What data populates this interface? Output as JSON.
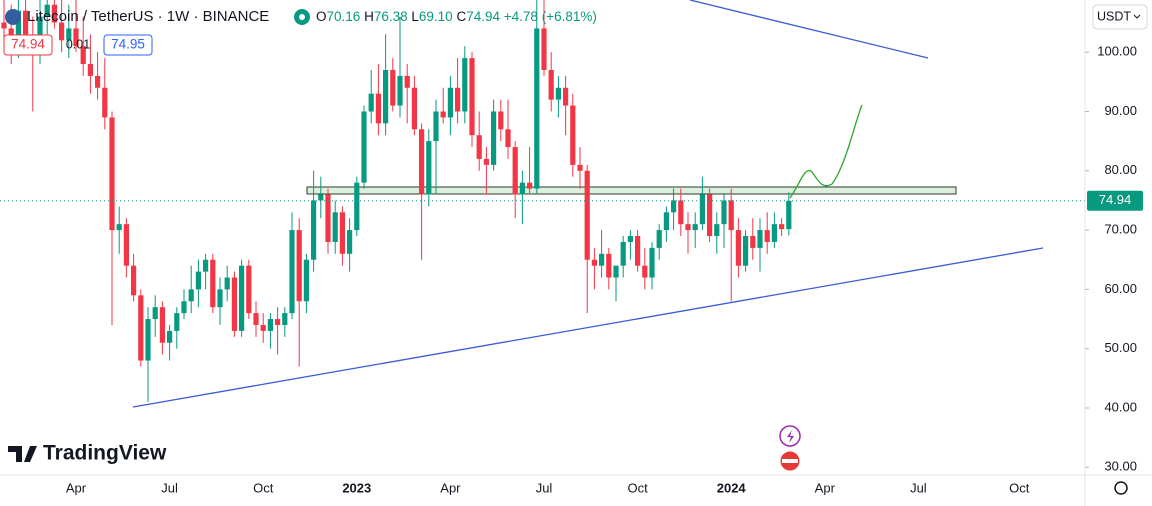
{
  "header": {
    "symbol": "Litecoin / TetherUS · 1W · BINANCE",
    "ohlc": [
      {
        "label": "O",
        "value": "70.16"
      },
      {
        "label": "H",
        "value": "76.38"
      },
      {
        "label": "L",
        "value": "69.10"
      },
      {
        "label": "C",
        "value": "74.94"
      }
    ],
    "change": "+4.78 (+6.81%)",
    "bid": "74.94",
    "spread": "0.01",
    "ask": "74.95",
    "currency": "USDT",
    "brand": "TradingView"
  },
  "chart_data": {
    "type": "candlestick",
    "categories": [
      null,
      null,
      null,
      null,
      null,
      null,
      null,
      null,
      null,
      null,
      "Apr",
      null,
      null,
      null,
      null,
      null,
      null,
      null,
      null,
      null,
      null,
      null,
      null,
      "Jul",
      null,
      null,
      null,
      null,
      null,
      null,
      null,
      null,
      null,
      null,
      null,
      null,
      "Oct",
      null,
      null,
      null,
      null,
      null,
      null,
      null,
      null,
      null,
      null,
      null,
      null,
      "2023",
      null,
      null,
      null,
      null,
      null,
      null,
      null,
      null,
      null,
      null,
      null,
      null,
      "Apr",
      null,
      null,
      null,
      null,
      null,
      null,
      null,
      null,
      null,
      null,
      null,
      null,
      "Jul",
      null,
      null,
      null,
      null,
      null,
      null,
      null,
      null,
      null,
      null,
      null,
      null,
      "Oct",
      null,
      null,
      null,
      null,
      null,
      null,
      null,
      null,
      null,
      null,
      null,
      null,
      "2024",
      null,
      null,
      null,
      null,
      null,
      null,
      null,
      null,
      null,
      null,
      null,
      null,
      "Apr",
      null,
      null,
      null,
      null,
      null,
      null,
      null,
      null,
      null,
      null,
      null,
      null,
      "Jul",
      null,
      null,
      null,
      null,
      null,
      null,
      null,
      null,
      null,
      null,
      null,
      null,
      null,
      "Oct",
      null,
      null,
      null
    ],
    "open": [
      105,
      104,
      101,
      107,
      103,
      100,
      106,
      108,
      105,
      102,
      104,
      101,
      98,
      96,
      94,
      89,
      70,
      71,
      64,
      59,
      48,
      55,
      57,
      51,
      53,
      56,
      58,
      60,
      63,
      65,
      57,
      60,
      62,
      53,
      64,
      56,
      54,
      53,
      55,
      54,
      56,
      70,
      58,
      65,
      75,
      76,
      68,
      73,
      66,
      70,
      78,
      90,
      93,
      88,
      97,
      91,
      96,
      94,
      87,
      76,
      85,
      90,
      89,
      94,
      90,
      99,
      86,
      82,
      81,
      90,
      87,
      84,
      76,
      78,
      77,
      104,
      97,
      92,
      94,
      91,
      81,
      80,
      65,
      64,
      66,
      62,
      64,
      68,
      69,
      64,
      62,
      67,
      70,
      73,
      75,
      71,
      70,
      71,
      76,
      69,
      71,
      75,
      70,
      64,
      69,
      67,
      70,
      68,
      71,
      70.16,
      null,
      null,
      null,
      null,
      null,
      null,
      null,
      null,
      null,
      null,
      null,
      null,
      null,
      null,
      null,
      null,
      null,
      null,
      null,
      null,
      null,
      null,
      null,
      null,
      null,
      null,
      null,
      null,
      null,
      null,
      null,
      null,
      null,
      null,
      null
    ],
    "high": [
      112,
      108,
      110,
      112,
      106,
      109,
      112,
      114,
      110,
      108,
      110,
      106,
      103,
      100,
      99,
      90,
      74,
      72,
      66,
      60,
      57,
      59,
      58,
      54,
      57,
      60,
      64,
      65,
      66,
      66,
      62,
      64,
      63,
      65,
      65,
      58,
      56,
      56,
      57,
      57,
      73,
      72,
      66,
      80,
      79,
      77,
      75,
      74,
      72,
      79,
      91,
      97,
      98,
      103,
      99,
      106,
      98,
      96,
      88,
      87,
      92,
      94,
      96,
      99,
      101,
      100,
      90,
      84,
      92,
      92,
      92,
      85,
      80,
      84,
      115,
      112,
      100,
      96,
      96,
      93,
      84,
      81,
      67,
      70,
      67,
      64,
      69,
      70,
      70,
      67,
      68,
      71,
      74,
      77,
      77,
      73,
      73,
      79,
      77,
      73,
      76,
      77,
      72,
      70,
      72,
      72,
      73,
      73,
      72,
      76.38,
      null,
      null,
      null,
      null,
      null,
      null,
      null,
      null,
      null,
      null,
      null,
      null,
      null,
      null,
      null,
      null,
      null,
      null,
      null,
      null,
      null,
      null,
      null,
      null,
      null,
      null,
      null,
      null,
      null,
      null,
      null,
      null,
      null,
      null,
      null
    ],
    "low": [
      100,
      98,
      99,
      102,
      90,
      98,
      103,
      104,
      100,
      99,
      100,
      96,
      93,
      92,
      87,
      54,
      66,
      62,
      58,
      47,
      41,
      52,
      49,
      48,
      50,
      55,
      56,
      57,
      60,
      56,
      54,
      58,
      52,
      52,
      55,
      52,
      51,
      50,
      49,
      52,
      55,
      47,
      56,
      63,
      72,
      66,
      66,
      64,
      63,
      69,
      77,
      88,
      86,
      86,
      90,
      89,
      88,
      86,
      65,
      74,
      76,
      88,
      86,
      88,
      88,
      84,
      80,
      76,
      80,
      85,
      82,
      72,
      71,
      76,
      76,
      96,
      90,
      89,
      86,
      79,
      77,
      56,
      60,
      62,
      60,
      58,
      62,
      65,
      63,
      60,
      60,
      65,
      68,
      70,
      69,
      66,
      67,
      70,
      68,
      66,
      67,
      58,
      62,
      63,
      65,
      63,
      66,
      67,
      69,
      69.1,
      null,
      null,
      null,
      null,
      null,
      null,
      null,
      null,
      null,
      null,
      null,
      null,
      null,
      null,
      null,
      null,
      null,
      null,
      null,
      null,
      null,
      null,
      null,
      null,
      null,
      null,
      null,
      null,
      null,
      null,
      null,
      null,
      null,
      null,
      null
    ],
    "close": [
      104,
      101,
      107,
      103,
      100,
      106,
      108,
      105,
      102,
      104,
      101,
      98,
      96,
      94,
      89,
      70,
      71,
      64,
      59,
      48,
      55,
      57,
      51,
      53,
      56,
      58,
      60,
      63,
      65,
      57,
      60,
      62,
      53,
      64,
      56,
      54,
      53,
      55,
      54,
      56,
      70,
      58,
      65,
      75,
      76,
      68,
      73,
      66,
      70,
      78,
      90,
      93,
      88,
      97,
      91,
      96,
      94,
      87,
      76,
      85,
      90,
      89,
      94,
      90,
      99,
      86,
      82,
      81,
      90,
      87,
      84,
      76,
      78,
      77,
      104,
      97,
      92,
      94,
      91,
      81,
      80,
      65,
      64,
      66,
      62,
      64,
      68,
      69,
      64,
      62,
      67,
      70,
      73,
      75,
      71,
      70,
      71,
      76,
      69,
      71,
      75,
      70,
      64,
      69,
      67,
      70,
      68,
      71,
      70.16,
      74.94,
      null,
      null,
      null,
      null,
      null,
      null,
      null,
      null,
      null,
      null,
      null,
      null,
      null,
      null,
      null,
      null,
      null,
      null,
      null,
      null,
      null,
      null,
      null,
      null,
      null,
      null,
      null,
      null,
      null,
      null,
      null,
      null,
      null,
      null,
      null
    ],
    "up_color": "#089981",
    "down_color": "#f23645",
    "ylim": [
      28.7,
      108.8
    ],
    "yticks": [
      {
        "value": 30,
        "label": "30.00"
      },
      {
        "value": 40,
        "label": "40.00"
      },
      {
        "value": 50,
        "label": "50.00"
      },
      {
        "value": 60,
        "label": "60.00"
      },
      {
        "value": 70,
        "label": "70.00"
      },
      {
        "value": 80,
        "label": "80.00"
      },
      {
        "value": 90,
        "label": "90.00"
      },
      {
        "value": 100,
        "label": "100.00"
      }
    ]
  }
}
